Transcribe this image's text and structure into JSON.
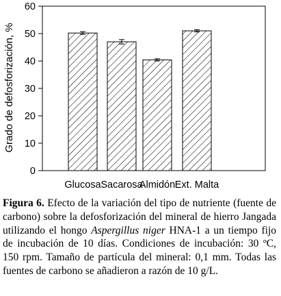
{
  "chart_data": {
    "type": "bar",
    "categories": [
      "Glucosa",
      "Sacarosa",
      "Almidón",
      "Ext. Malta"
    ],
    "values": [
      50.2,
      47.0,
      40.4,
      51.0
    ],
    "errors": [
      0.5,
      0.8,
      0.4,
      0.4
    ],
    "title": "",
    "xlabel": "",
    "ylabel": "Grado de defosforización, %",
    "ylim": [
      0,
      60
    ],
    "yticks": [
      0,
      10,
      20,
      30,
      40,
      50,
      60
    ],
    "bar_fill": "diagonal-hatch",
    "bar_color": "#000000",
    "grid": false,
    "legend": "none"
  },
  "caption": {
    "label": "Figura 6.",
    "text_before_species": " Efecto de la variación del tipo de nutriente (fuente de carbono) sobre la defosforización del mineral de hierro Jangada utilizando el hongo ",
    "species": "Aspergillus niger",
    "text_after_species": " HNA-1 a un tiempo fijo de incubación de 10 días. Condiciones de incubación: 30 ºC, 150 rpm. Tamaño de partícula del mineral: 0,1 mm. Todas las fuentes de carbono se añadieron a razón de 10 g/L."
  }
}
